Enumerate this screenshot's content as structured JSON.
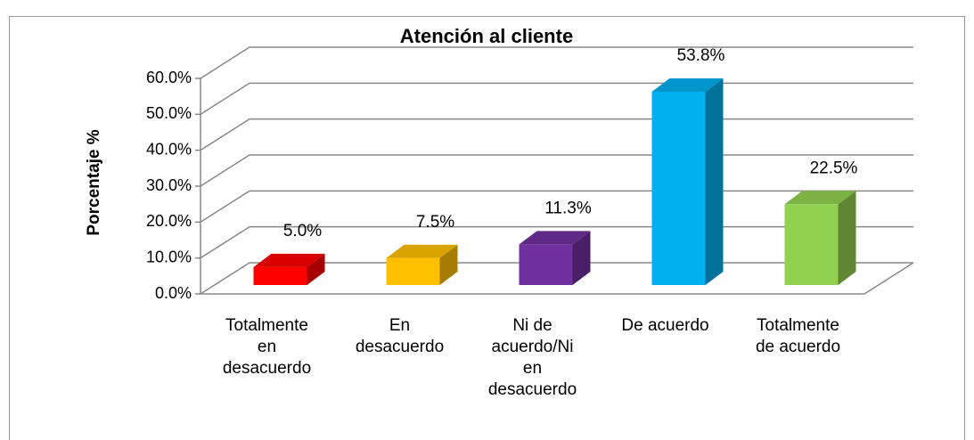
{
  "chart_data": {
    "type": "bar3d",
    "title": "Atención al cliente",
    "y_label": "Porcentaje %",
    "categories": [
      "Totalmente en desacuerdo",
      "En desacuerdo",
      "Ni de acuerdo/Ni en desacuerdo",
      "De acuerdo",
      "Totalmente de acuerdo"
    ],
    "values": [
      5.0,
      7.5,
      11.3,
      53.8,
      22.5
    ],
    "value_labels": [
      "5.0%",
      "7.5%",
      "11.3%",
      "53.8%",
      "22.5%"
    ],
    "colors": [
      "#ff0000",
      "#ffc000",
      "#7030a0",
      "#00b0f0",
      "#92d050"
    ],
    "ylim": [
      0,
      60
    ],
    "yticks": [
      {
        "value": 0,
        "label": "0.0%"
      },
      {
        "value": 10,
        "label": "10.0%"
      },
      {
        "value": 20,
        "label": "20.0%"
      },
      {
        "value": 30,
        "label": "30.0%"
      },
      {
        "value": 40,
        "label": "40.0%"
      },
      {
        "value": 50,
        "label": "50.0%"
      },
      {
        "value": 60,
        "label": "60.0%"
      }
    ],
    "grid": true
  }
}
